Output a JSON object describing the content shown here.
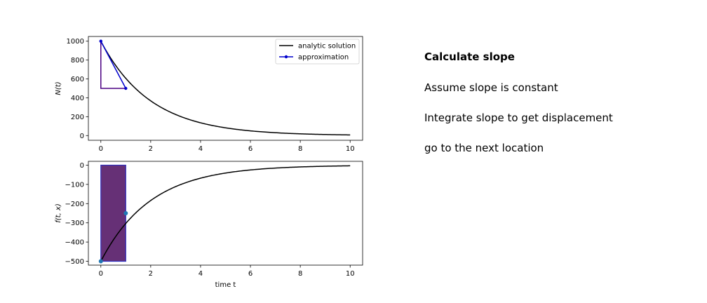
{
  "chart_data": [
    {
      "type": "line",
      "xlabel": "",
      "ylabel": "N(t)",
      "xlim": [
        -0.5,
        10.5
      ],
      "ylim": [
        -50,
        1050
      ],
      "xticks": [
        0,
        2,
        4,
        6,
        8,
        10
      ],
      "yticks": [
        0,
        200,
        400,
        600,
        800,
        1000
      ],
      "legend_position": "top-right",
      "grid": false,
      "series": [
        {
          "name": "analytic solution",
          "color": "#000000",
          "function": "1000*exp(-0.5*t)",
          "t_range": [
            0,
            10
          ]
        },
        {
          "name": "approximation",
          "color": "#0000cc",
          "marker": "dot",
          "x": [
            0,
            1
          ],
          "y": [
            1000,
            500
          ]
        }
      ],
      "annotations": [
        {
          "kind": "slope-triangle",
          "color": "#4b0082",
          "points": [
            [
              0,
              1000
            ],
            [
              0,
              500
            ],
            [
              1,
              500
            ]
          ]
        }
      ]
    },
    {
      "type": "line",
      "xlabel": "time t",
      "ylabel": "f(t, x)",
      "xlim": [
        -0.5,
        10.5
      ],
      "ylim": [
        -520,
        20
      ],
      "xticks": [
        0,
        2,
        4,
        6,
        8,
        10
      ],
      "yticks": [
        0,
        -100,
        -200,
        -300,
        -400,
        -500
      ],
      "grid": false,
      "series": [
        {
          "name": "",
          "color": "#000000",
          "function": "-500*exp(-0.5*t)",
          "t_range": [
            0,
            10
          ]
        },
        {
          "name": "",
          "color": "#1f77b4",
          "marker": "dot",
          "x": [
            0,
            1
          ],
          "y": [
            -500,
            -250
          ],
          "style": "points"
        }
      ],
      "annotations": [
        {
          "kind": "rectangle",
          "fill": "#4b0c5e",
          "edge": "#3030c0",
          "x": [
            0,
            1
          ],
          "y": [
            0,
            -500
          ]
        }
      ]
    }
  ],
  "notes": {
    "title": "Calculate slope",
    "lines": [
      "Assume slope is constant",
      "Integrate slope to get displacement",
      "go to the next location"
    ]
  }
}
